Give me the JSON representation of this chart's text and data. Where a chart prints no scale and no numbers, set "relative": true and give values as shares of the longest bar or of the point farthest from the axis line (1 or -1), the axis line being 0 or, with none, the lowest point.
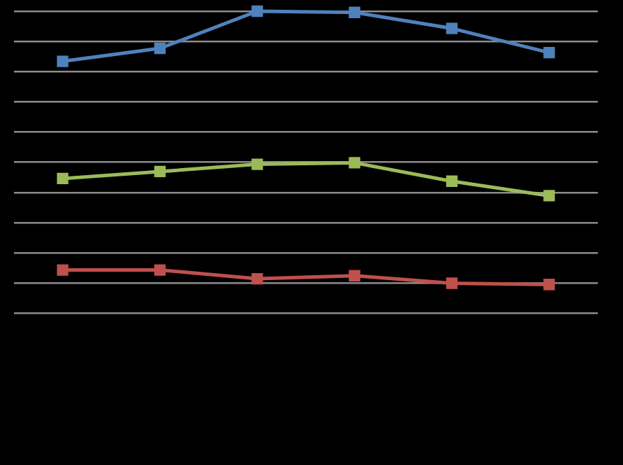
{
  "chart_data": {
    "type": "line",
    "relative": true,
    "categories": [
      null,
      null,
      null,
      null,
      null,
      null
    ],
    "series": [
      {
        "color": "#4f81bd",
        "values": [
          0.834,
          0.877,
          1,
          0.996,
          0.943,
          0.863
        ]
      },
      {
        "color": "#9bbb59",
        "values": [
          0.446,
          0.469,
          0.493,
          0.498,
          0.437,
          0.389
        ]
      },
      {
        "color": "#c0504d",
        "values": [
          0.143,
          0.143,
          0.114,
          0.124,
          0.099,
          0.095
        ]
      }
    ],
    "grid": "y",
    "marker": "square",
    "line_style": "solid"
  }
}
